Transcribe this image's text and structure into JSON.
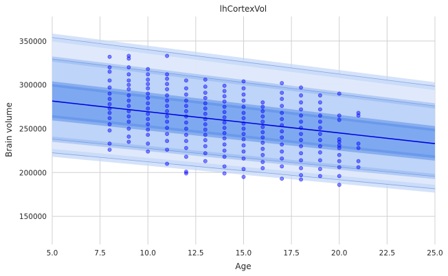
{
  "chart_data": {
    "type": "scatter",
    "title": "lhCortexVol",
    "xlabel": "Age",
    "ylabel": "Brain volume",
    "xlim": [
      5.0,
      25.0
    ],
    "ylim": [
      118000,
      378000
    ],
    "xticks": [
      "5.0",
      "7.5",
      "10.0",
      "12.5",
      "15.0",
      "17.5",
      "20.0",
      "22.5",
      "25.0"
    ],
    "xtick_values": [
      5,
      7.5,
      10,
      12.5,
      15,
      17.5,
      20,
      22.5,
      25
    ],
    "yticks": [
      "150000",
      "200000",
      "250000",
      "300000",
      "350000"
    ],
    "ytick_values": [
      150000,
      200000,
      250000,
      300000,
      350000
    ],
    "grid": true,
    "colors": {
      "points": "#0000ff",
      "median_line": "#0000dd",
      "band_inner": "#7aa6f0",
      "band_mid": "#bcd3f8",
      "band_outer": "#dde8fb",
      "grid": "#d0d0d0"
    },
    "centiles": {
      "x": [
        5,
        25
      ],
      "median": [
        281500,
        233000
      ],
      "p25_band": {
        "lower": [
          262500,
          216500
        ],
        "upper": [
          301000,
          250000
        ]
      },
      "p5_band": {
        "lower": [
          238000,
          195500
        ],
        "upper": [
          329500,
          276000
        ]
      },
      "p1_band": {
        "lower": [
          222500,
          181500
        ],
        "upper": [
          354000,
          298500
        ]
      },
      "band_halfwidth": [
        {
          "band": "p25",
          "value": 3000
        },
        {
          "band": "p5",
          "value": 3000
        },
        {
          "band": "p1",
          "value": 4500
        }
      ]
    },
    "points": {
      "ages": [
        8,
        9,
        10,
        11,
        12,
        13,
        14,
        15,
        16,
        17,
        18,
        19,
        20,
        21
      ],
      "values": [
        [
          332000,
          320000,
          315000,
          305000,
          297000,
          290000,
          284000,
          278000,
          273000,
          268000,
          262000,
          255000,
          248000,
          233000,
          226000
        ],
        [
          333000,
          330000,
          320000,
          312000,
          305000,
          300000,
          295000,
          288000,
          282000,
          276000,
          270000,
          264000,
          258000,
          250000,
          241000,
          235000
        ],
        [
          318000,
          312000,
          306000,
          301000,
          296000,
          290000,
          285000,
          279000,
          273000,
          267000,
          261000,
          255000,
          249000,
          243000,
          233000,
          224000
        ],
        [
          333000,
          312000,
          307000,
          301000,
          295000,
          288000,
          282000,
          276000,
          270000,
          264000,
          258000,
          251000,
          244000,
          236000,
          226000,
          210000
        ],
        [
          305000,
          296000,
          289000,
          282000,
          276000,
          270000,
          264000,
          257000,
          250000,
          243000,
          236000,
          228000,
          218000,
          201000,
          199000
        ],
        [
          306000,
          298000,
          291000,
          285000,
          279000,
          273000,
          267000,
          261000,
          255000,
          249000,
          243000,
          237000,
          230000,
          222000,
          213000
        ],
        [
          299000,
          293000,
          287000,
          281000,
          275000,
          269000,
          263000,
          257000,
          251000,
          245000,
          239000,
          232000,
          225000,
          218000,
          207000,
          199000
        ],
        [
          304000,
          296000,
          289000,
          282000,
          275000,
          268000,
          262000,
          256000,
          250000,
          244000,
          238000,
          231000,
          224000,
          216000,
          204000,
          195000
        ],
        [
          280000,
          275000,
          270000,
          264000,
          258000,
          252000,
          246000,
          240000,
          234000,
          227000,
          220000,
          212000,
          205000
        ],
        [
          302000,
          291000,
          284000,
          276000,
          268000,
          261000,
          254000,
          247000,
          240000,
          232000,
          224000,
          216000,
          207000,
          193000
        ],
        [
          297000,
          288000,
          280000,
          272000,
          265000,
          258000,
          251000,
          244000,
          237000,
          230000,
          222000,
          214000,
          205000,
          197000,
          192000
        ],
        [
          288000,
          280000,
          272000,
          265000,
          258000,
          251000,
          244000,
          237000,
          230000,
          223000,
          214000,
          204000,
          196000
        ],
        [
          290000,
          265000,
          260000,
          238000,
          235000,
          231000,
          228000,
          220000,
          213000,
          206000,
          196000,
          186000
        ],
        [
          268000,
          265000,
          233000,
          228000,
          213000,
          206000
        ]
      ]
    }
  }
}
